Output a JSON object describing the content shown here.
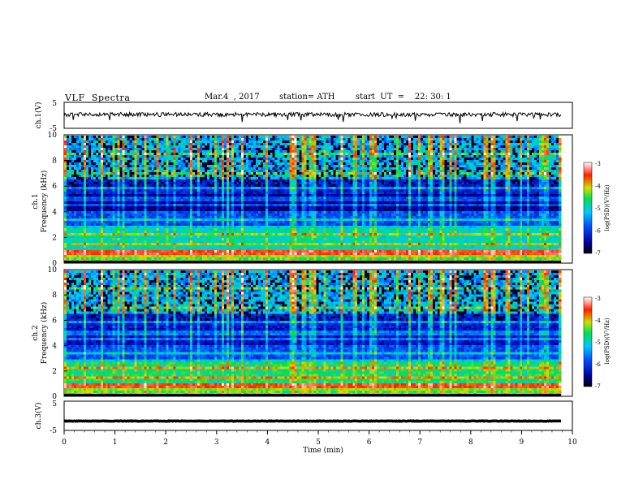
{
  "header": {
    "title": "VLF  Spectra",
    "date": "Mar.4  , 2017",
    "station": "station= ATH",
    "start": "start  UT  =    22: 30: 1"
  },
  "chart_data": [
    {
      "type": "line",
      "panel": "ch1-waveform",
      "ylabel": "ch.1(V)",
      "ylim": [
        -5,
        5
      ],
      "yticks": [
        "5",
        "-5"
      ],
      "xlim": [
        0,
        10
      ],
      "series": [
        {
          "color": "#000000",
          "approx_level": 0.3
        }
      ]
    },
    {
      "type": "heatmap",
      "panel": "ch1-spectrogram",
      "ylabel": "Frequency (kHz)",
      "channel_label": "ch.1",
      "ylim": [
        0,
        10
      ],
      "yticks": [
        "0",
        "2",
        "4",
        "6",
        "8",
        "10"
      ],
      "xlim": [
        0,
        10
      ],
      "colorbar": {
        "label": "log(PSD)(V²/Hz)",
        "range": [
          -7,
          -3
        ],
        "ticks": [
          "-3",
          "-4",
          "-5",
          "-6",
          "-7"
        ],
        "colormap": [
          "#000000",
          "#0000a0",
          "#0050ff",
          "#00c8ff",
          "#00e050",
          "#d0e000",
          "#ff2000",
          "#ffffff"
        ]
      }
    },
    {
      "type": "heatmap",
      "panel": "ch2-spectrogram",
      "ylabel": "Frequency (kHz)",
      "channel_label": "ch.2",
      "ylim": [
        0,
        10
      ],
      "yticks": [
        "0",
        "2",
        "4",
        "6",
        "8",
        "10"
      ],
      "xlim": [
        0,
        10
      ],
      "colorbar": {
        "label": "log(PSD)(V²/Hz)",
        "range": [
          -7,
          -3
        ],
        "ticks": [
          "-3",
          "-4",
          "-5",
          "-6",
          "-7"
        ],
        "colormap": [
          "#000000",
          "#0000a0",
          "#0050ff",
          "#00c8ff",
          "#00e050",
          "#d0e000",
          "#ff2000",
          "#ffffff"
        ]
      }
    },
    {
      "type": "line",
      "panel": "ch3-waveform",
      "ylabel": "ch.3(V)",
      "ylim": [
        -5,
        5
      ],
      "yticks": [
        "5",
        "-5"
      ],
      "xlim": [
        0,
        10
      ],
      "series": [
        {
          "color": "#000000",
          "approx_level": -1.8
        }
      ]
    }
  ],
  "xaxis": {
    "label": "Time  (min)",
    "ticks": [
      "0",
      "1",
      "2",
      "3",
      "4",
      "5",
      "6",
      "7",
      "8",
      "9",
      "10"
    ]
  }
}
